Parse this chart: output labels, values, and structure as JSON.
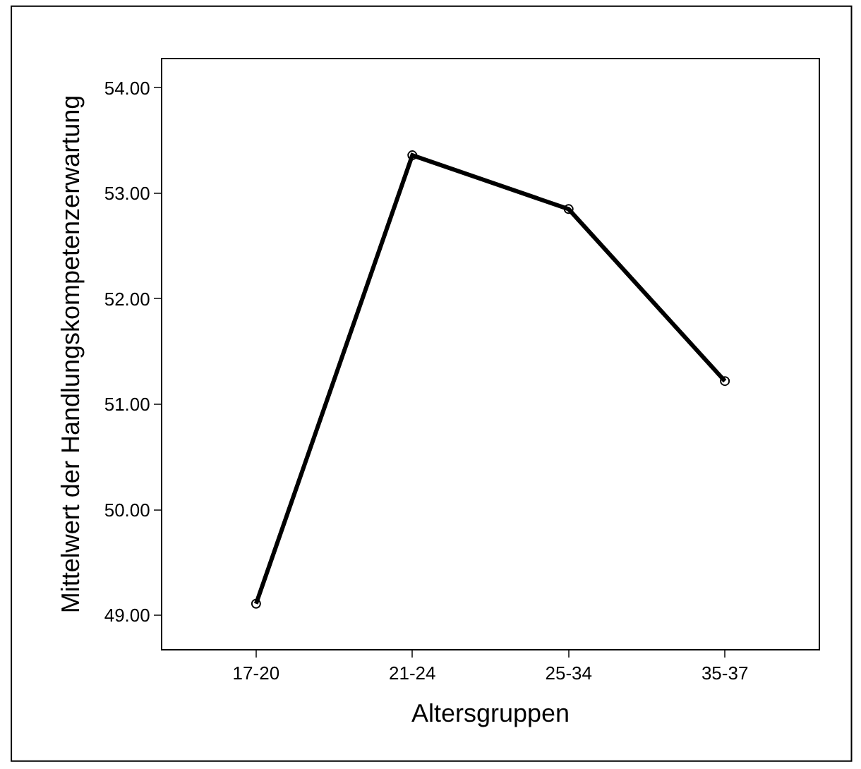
{
  "chart_data": {
    "type": "line",
    "xlabel": "Altersgruppen",
    "ylabel": "Mittelwert der Handlungskompetenzerwartung",
    "categories": [
      "17-20",
      "21-24",
      "25-34",
      "35-37"
    ],
    "series": [
      {
        "color": "#000000",
        "values": [
          49.11,
          53.36,
          52.85,
          51.22
        ]
      }
    ],
    "ylim": [
      48.68,
      54.27
    ],
    "yticks": [
      {
        "value": 49,
        "label": "49.00"
      },
      {
        "value": 50,
        "label": "50.00"
      },
      {
        "value": 51,
        "label": "51.00"
      },
      {
        "value": 52,
        "label": "52.00"
      },
      {
        "value": 53,
        "label": "53.00"
      },
      {
        "value": 54,
        "label": "54.00"
      }
    ],
    "marker": "circle",
    "line_style": "solid"
  }
}
